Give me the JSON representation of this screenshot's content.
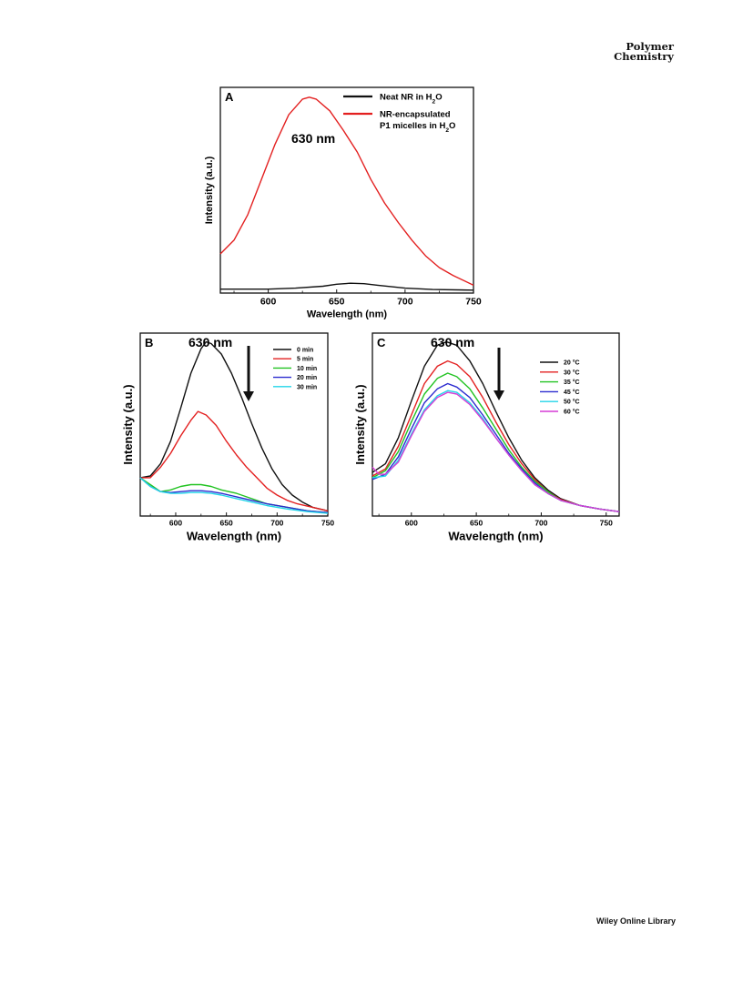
{
  "header": {
    "journal_line1": "Polymer",
    "journal_line2": "Chemistry"
  },
  "footer": {
    "library": "Wiley Online Library"
  },
  "chart_data": [
    {
      "panel": "A",
      "type": "line",
      "xlabel": "Wavelength (nm)",
      "ylabel": "Intensity (a.u.)",
      "xlim": [
        565,
        750
      ],
      "ylim": [
        0,
        1.05
      ],
      "xticks": [
        600,
        650,
        700,
        750
      ],
      "annotation": "630 nm",
      "legend_position": "top-right",
      "series": [
        {
          "name": "Neat NR in H2O",
          "name_base": "Neat NR in H",
          "name_sub": "2",
          "name_tail": "O",
          "color": "#111111",
          "x": [
            565,
            580,
            600,
            620,
            640,
            650,
            660,
            670,
            680,
            700,
            720,
            750
          ],
          "y": [
            0.02,
            0.02,
            0.02,
            0.025,
            0.035,
            0.045,
            0.05,
            0.048,
            0.04,
            0.025,
            0.018,
            0.015
          ]
        },
        {
          "name": "NR-encapsulated P1 micelles in H2O",
          "name_line1": "NR-encapsulated",
          "name_base": "P1 micelles in H",
          "name_sub": "2",
          "name_tail": "O",
          "color": "#e32020",
          "x": [
            565,
            575,
            585,
            595,
            605,
            615,
            625,
            630,
            635,
            645,
            655,
            665,
            675,
            685,
            695,
            705,
            715,
            725,
            735,
            750
          ],
          "y": [
            0.2,
            0.27,
            0.4,
            0.58,
            0.76,
            0.91,
            0.99,
            1.0,
            0.99,
            0.93,
            0.83,
            0.72,
            0.58,
            0.46,
            0.36,
            0.27,
            0.19,
            0.13,
            0.09,
            0.04
          ]
        }
      ]
    },
    {
      "panel": "B",
      "type": "line",
      "xlabel": "Wavelength (nm)",
      "ylabel": "Intensity (a.u.)",
      "xlim": [
        565,
        750
      ],
      "ylim": [
        0,
        1.05
      ],
      "xticks": [
        600,
        650,
        700,
        750
      ],
      "annotation": "630 nm",
      "legend_position": "top-right",
      "series": [
        {
          "name": "0 min",
          "color": "#111111",
          "x": [
            565,
            575,
            585,
            595,
            605,
            615,
            625,
            630,
            635,
            645,
            655,
            665,
            675,
            685,
            695,
            705,
            715,
            725,
            735,
            750
          ],
          "y": [
            0.22,
            0.23,
            0.3,
            0.43,
            0.62,
            0.82,
            0.96,
            1.0,
            0.99,
            0.93,
            0.82,
            0.68,
            0.53,
            0.39,
            0.27,
            0.18,
            0.12,
            0.08,
            0.05,
            0.03
          ]
        },
        {
          "name": "5 min",
          "color": "#e32020",
          "x": [
            565,
            575,
            585,
            595,
            605,
            615,
            622,
            630,
            640,
            650,
            660,
            670,
            680,
            690,
            700,
            710,
            720,
            735,
            750
          ],
          "y": [
            0.22,
            0.22,
            0.28,
            0.36,
            0.46,
            0.55,
            0.6,
            0.58,
            0.52,
            0.43,
            0.35,
            0.28,
            0.22,
            0.16,
            0.12,
            0.09,
            0.07,
            0.05,
            0.03
          ]
        },
        {
          "name": "10 min",
          "color": "#22c322",
          "x": [
            565,
            575,
            585,
            595,
            605,
            615,
            625,
            635,
            645,
            660,
            675,
            690,
            710,
            730,
            750
          ],
          "y": [
            0.22,
            0.18,
            0.14,
            0.15,
            0.17,
            0.18,
            0.18,
            0.17,
            0.15,
            0.13,
            0.1,
            0.07,
            0.05,
            0.03,
            0.02
          ]
        },
        {
          "name": "20 min",
          "color": "#2b2bcf",
          "x": [
            565,
            575,
            585,
            595,
            605,
            615,
            625,
            635,
            645,
            660,
            675,
            690,
            710,
            730,
            750
          ],
          "y": [
            0.22,
            0.17,
            0.14,
            0.135,
            0.14,
            0.145,
            0.145,
            0.14,
            0.13,
            0.11,
            0.09,
            0.07,
            0.05,
            0.03,
            0.02
          ]
        },
        {
          "name": "30 min",
          "color": "#22d5e8",
          "x": [
            565,
            575,
            585,
            595,
            605,
            615,
            625,
            635,
            645,
            660,
            675,
            690,
            710,
            730,
            750
          ],
          "y": [
            0.22,
            0.17,
            0.14,
            0.13,
            0.13,
            0.135,
            0.135,
            0.13,
            0.12,
            0.1,
            0.08,
            0.06,
            0.04,
            0.025,
            0.015
          ]
        }
      ]
    },
    {
      "panel": "C",
      "type": "line",
      "xlabel": "Wavelength (nm)",
      "ylabel": "Intensity (a.u.)",
      "xlim": [
        570,
        760
      ],
      "ylim": [
        0,
        1.05
      ],
      "xticks": [
        600,
        650,
        700,
        750
      ],
      "annotation": "630 nm",
      "legend_position": "top-right",
      "series": [
        {
          "name": "20 °C",
          "color": "#111111",
          "x": [
            570,
            580,
            590,
            600,
            610,
            620,
            627,
            635,
            645,
            655,
            665,
            675,
            685,
            695,
            705,
            715,
            730,
            745,
            760
          ],
          "y": [
            0.25,
            0.3,
            0.45,
            0.66,
            0.86,
            0.98,
            1.0,
            0.98,
            0.89,
            0.76,
            0.6,
            0.45,
            0.32,
            0.22,
            0.15,
            0.1,
            0.06,
            0.04,
            0.025
          ]
        },
        {
          "name": "30 °C",
          "color": "#e32020",
          "x": [
            570,
            580,
            590,
            600,
            610,
            620,
            628,
            635,
            645,
            655,
            665,
            675,
            685,
            695,
            705,
            715,
            730,
            745,
            760
          ],
          "y": [
            0.23,
            0.27,
            0.4,
            0.58,
            0.76,
            0.86,
            0.89,
            0.87,
            0.8,
            0.68,
            0.54,
            0.41,
            0.3,
            0.21,
            0.14,
            0.095,
            0.06,
            0.04,
            0.025
          ]
        },
        {
          "name": "35 °C",
          "color": "#22c322",
          "x": [
            570,
            580,
            590,
            600,
            610,
            620,
            628,
            635,
            645,
            655,
            665,
            675,
            685,
            695,
            705,
            715,
            730,
            745,
            760
          ],
          "y": [
            0.22,
            0.26,
            0.37,
            0.54,
            0.7,
            0.79,
            0.82,
            0.8,
            0.73,
            0.62,
            0.5,
            0.38,
            0.28,
            0.2,
            0.14,
            0.09,
            0.06,
            0.04,
            0.025
          ]
        },
        {
          "name": "45 °C",
          "color": "#2b2bcf",
          "x": [
            570,
            580,
            590,
            600,
            610,
            620,
            628,
            635,
            645,
            655,
            665,
            675,
            685,
            695,
            705,
            715,
            730,
            745,
            760
          ],
          "y": [
            0.21,
            0.24,
            0.34,
            0.5,
            0.65,
            0.73,
            0.76,
            0.74,
            0.68,
            0.58,
            0.47,
            0.36,
            0.27,
            0.19,
            0.13,
            0.09,
            0.06,
            0.04,
            0.025
          ]
        },
        {
          "name": "50 °C",
          "color": "#22d5e8",
          "x": [
            570,
            580,
            590,
            600,
            610,
            620,
            628,
            635,
            645,
            655,
            665,
            675,
            685,
            695,
            705,
            715,
            730,
            745,
            760
          ],
          "y": [
            0.22,
            0.23,
            0.32,
            0.47,
            0.61,
            0.69,
            0.72,
            0.71,
            0.65,
            0.56,
            0.45,
            0.35,
            0.26,
            0.18,
            0.13,
            0.09,
            0.06,
            0.04,
            0.025
          ]
        },
        {
          "name": "60 °C",
          "color": "#d63cd6",
          "x": [
            570,
            575,
            580,
            590,
            600,
            610,
            620,
            628,
            635,
            645,
            655,
            665,
            675,
            685,
            695,
            705,
            715,
            730,
            745,
            760
          ],
          "y": [
            0.28,
            0.24,
            0.24,
            0.31,
            0.46,
            0.6,
            0.68,
            0.71,
            0.7,
            0.64,
            0.55,
            0.45,
            0.35,
            0.26,
            0.18,
            0.13,
            0.09,
            0.06,
            0.04,
            0.025
          ]
        }
      ]
    }
  ]
}
